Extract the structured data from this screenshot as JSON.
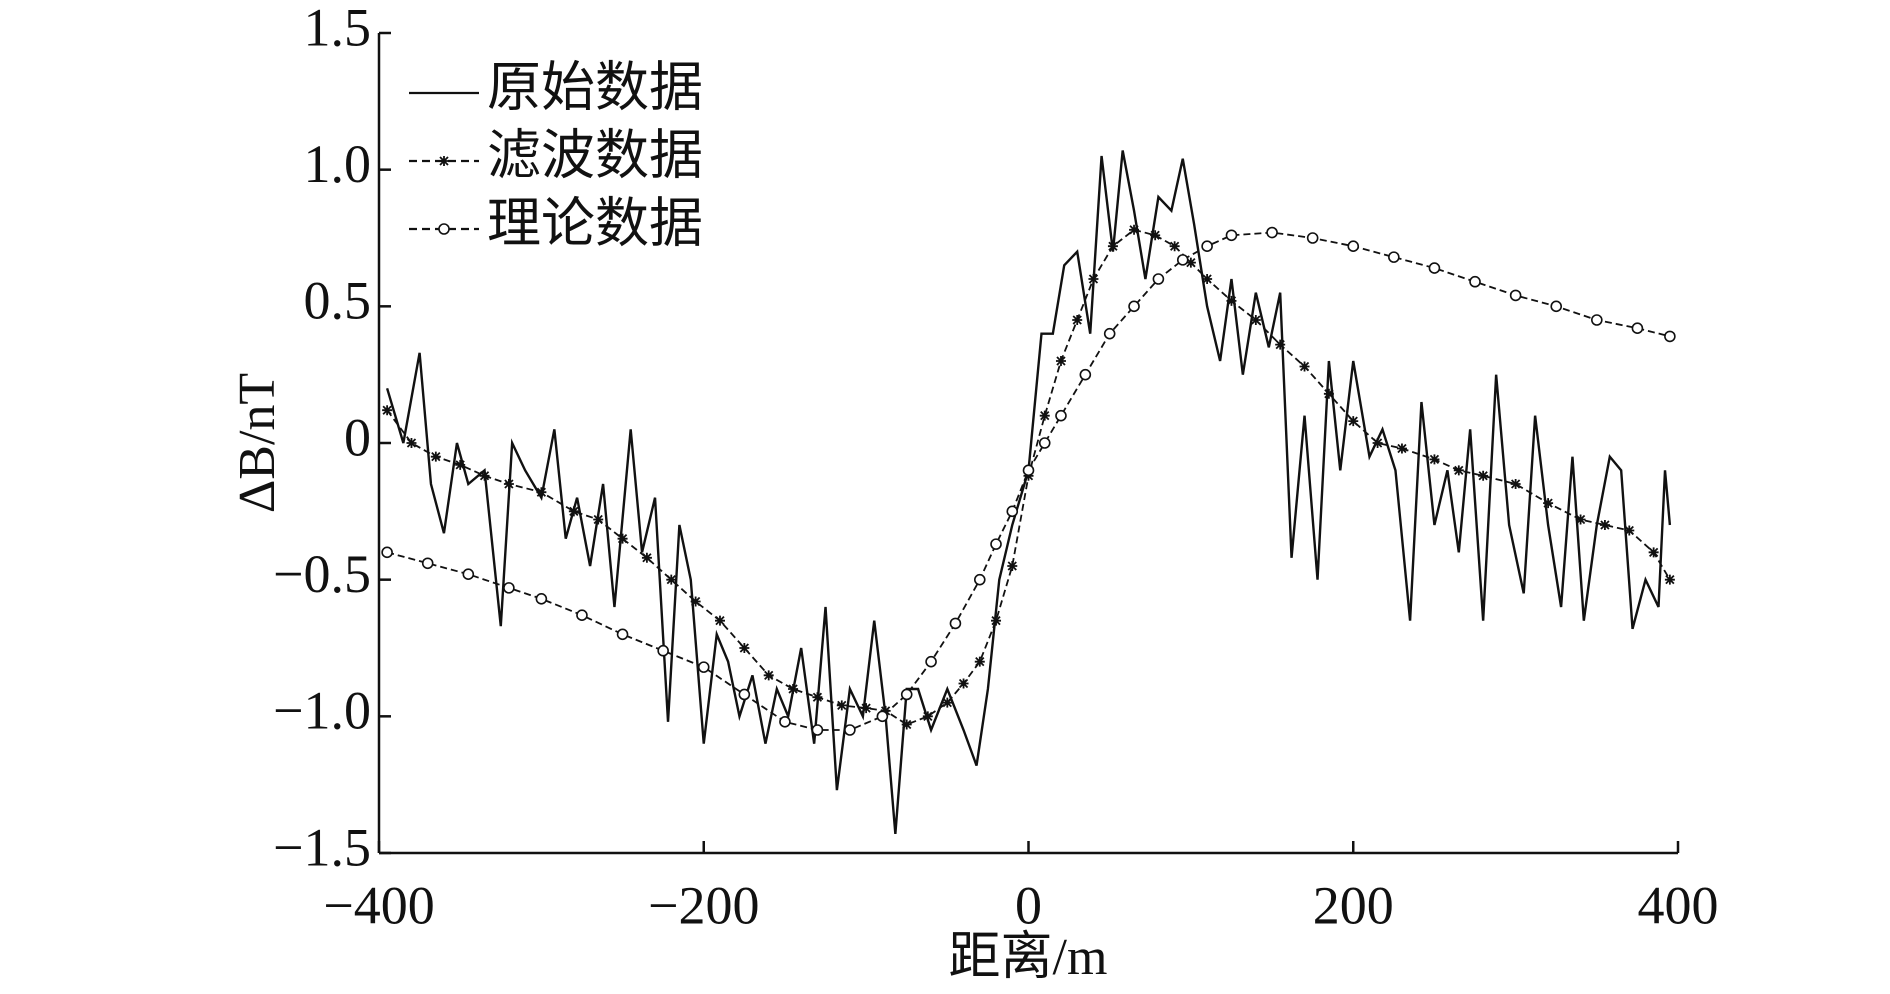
{
  "chart_data": {
    "type": "line",
    "x_label": "距离/m",
    "y_label": "ΔB/nT",
    "xlim": [
      -400,
      400
    ],
    "ylim": [
      -1.5,
      1.5
    ],
    "xticks": [
      {
        "value": -400,
        "label": "−400"
      },
      {
        "value": -200,
        "label": "−200"
      },
      0,
      200,
      400
    ],
    "yticks": [
      {
        "value": -1.5,
        "label": "−1.5"
      },
      {
        "value": -1.0,
        "label": "−1.0"
      },
      {
        "value": -0.5,
        "label": "−0.5"
      },
      0,
      {
        "value": 0.5,
        "label": "0.5"
      },
      {
        "value": 1.0,
        "label": "1.0"
      },
      {
        "value": 1.5,
        "label": "1.5"
      }
    ],
    "legend": "upper left",
    "series": [
      {
        "name": "原始数据",
        "color": "#111111",
        "marker": "none",
        "dash": "solid",
        "x": [
          -395,
          -385,
          -375,
          -368,
          -360,
          -352,
          -345,
          -335,
          -325,
          -318,
          -310,
          -300,
          -292,
          -285,
          -278,
          -270,
          -262,
          -255,
          -245,
          -238,
          -230,
          -222,
          -215,
          -208,
          -200,
          -192,
          -185,
          -178,
          -170,
          -162,
          -155,
          -148,
          -140,
          -132,
          -125,
          -118,
          -110,
          -102,
          -95,
          -88,
          -82,
          -75,
          -68,
          -60,
          -50,
          -40,
          -32,
          -25,
          -18,
          -10,
          0,
          8,
          15,
          22,
          30,
          38,
          45,
          52,
          58,
          65,
          72,
          80,
          88,
          95,
          102,
          110,
          118,
          125,
          132,
          140,
          148,
          155,
          162,
          170,
          178,
          185,
          192,
          200,
          210,
          218,
          226,
          235,
          242,
          250,
          258,
          265,
          272,
          280,
          288,
          296,
          305,
          312,
          320,
          328,
          335,
          342,
          350,
          358,
          365,
          372,
          380,
          388,
          392,
          395
        ],
        "values": [
          0.2,
          0.0,
          0.33,
          -0.15,
          -0.33,
          0.0,
          -0.15,
          -0.1,
          -0.67,
          0.0,
          -0.1,
          -0.2,
          0.05,
          -0.35,
          -0.2,
          -0.45,
          -0.15,
          -0.6,
          0.05,
          -0.4,
          -0.2,
          -1.02,
          -0.3,
          -0.5,
          -1.1,
          -0.7,
          -0.8,
          -1.0,
          -0.85,
          -1.1,
          -0.9,
          -1.0,
          -0.75,
          -1.1,
          -0.6,
          -1.27,
          -0.9,
          -1.0,
          -0.65,
          -1.0,
          -1.43,
          -0.9,
          -0.9,
          -1.05,
          -0.9,
          -1.05,
          -1.18,
          -0.9,
          -0.5,
          -0.3,
          -0.1,
          0.4,
          0.4,
          0.65,
          0.7,
          0.4,
          1.05,
          0.7,
          1.07,
          0.85,
          0.6,
          0.9,
          0.85,
          1.04,
          0.8,
          0.5,
          0.3,
          0.6,
          0.25,
          0.55,
          0.35,
          0.55,
          -0.42,
          0.1,
          -0.5,
          0.3,
          -0.1,
          0.3,
          -0.05,
          0.05,
          -0.1,
          -0.65,
          0.15,
          -0.3,
          -0.1,
          -0.4,
          0.05,
          -0.65,
          0.25,
          -0.3,
          -0.55,
          0.1,
          -0.3,
          -0.6,
          -0.05,
          -0.65,
          -0.3,
          -0.05,
          -0.1,
          -0.68,
          -0.5,
          -0.6,
          -0.1,
          -0.3
        ]
      },
      {
        "name": "滤波数据",
        "color": "#111111",
        "marker": "plus",
        "dash": "dashed",
        "x": [
          -395,
          -380,
          -365,
          -350,
          -335,
          -320,
          -300,
          -280,
          -265,
          -250,
          -235,
          -220,
          -205,
          -190,
          -175,
          -160,
          -145,
          -130,
          -115,
          -100,
          -88,
          -75,
          -62,
          -50,
          -40,
          -30,
          -20,
          -10,
          0,
          10,
          20,
          30,
          40,
          52,
          65,
          78,
          90,
          100,
          110,
          125,
          140,
          155,
          170,
          185,
          200,
          215,
          230,
          250,
          265,
          280,
          300,
          320,
          340,
          355,
          370,
          385,
          395
        ],
        "values": [
          0.12,
          0.0,
          -0.05,
          -0.08,
          -0.12,
          -0.15,
          -0.18,
          -0.25,
          -0.28,
          -0.35,
          -0.42,
          -0.5,
          -0.58,
          -0.65,
          -0.75,
          -0.85,
          -0.9,
          -0.93,
          -0.96,
          -0.97,
          -0.98,
          -1.03,
          -1.0,
          -0.95,
          -0.88,
          -0.8,
          -0.65,
          -0.45,
          -0.12,
          0.1,
          0.3,
          0.45,
          0.6,
          0.72,
          0.78,
          0.76,
          0.72,
          0.66,
          0.6,
          0.52,
          0.45,
          0.36,
          0.28,
          0.18,
          0.08,
          0.0,
          -0.02,
          -0.06,
          -0.1,
          -0.12,
          -0.15,
          -0.22,
          -0.28,
          -0.3,
          -0.32,
          -0.4,
          -0.5
        ]
      },
      {
        "name": "理论数据",
        "color": "#111111",
        "marker": "circle",
        "dash": "dashed",
        "x": [
          -395,
          -370,
          -345,
          -320,
          -300,
          -275,
          -250,
          -225,
          -200,
          -175,
          -150,
          -130,
          -110,
          -90,
          -75,
          -60,
          -45,
          -30,
          -20,
          -10,
          0,
          10,
          20,
          35,
          50,
          65,
          80,
          95,
          110,
          125,
          150,
          175,
          200,
          225,
          250,
          275,
          300,
          325,
          350,
          375,
          395
        ],
        "values": [
          -0.4,
          -0.44,
          -0.48,
          -0.53,
          -0.57,
          -0.63,
          -0.7,
          -0.76,
          -0.82,
          -0.92,
          -1.02,
          -1.05,
          -1.05,
          -1.0,
          -0.92,
          -0.8,
          -0.66,
          -0.5,
          -0.37,
          -0.25,
          -0.1,
          0.0,
          0.1,
          0.25,
          0.4,
          0.5,
          0.6,
          0.67,
          0.72,
          0.76,
          0.77,
          0.75,
          0.72,
          0.68,
          0.64,
          0.59,
          0.54,
          0.5,
          0.45,
          0.42,
          0.39
        ]
      }
    ]
  }
}
